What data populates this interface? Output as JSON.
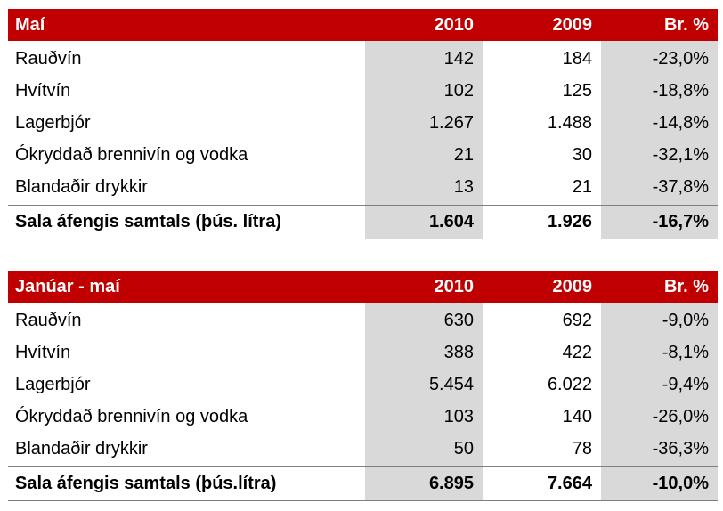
{
  "tables": [
    {
      "header": [
        "Maí",
        "2010",
        "2009",
        "Br. %"
      ],
      "rows": [
        [
          "Rauðvín",
          "142",
          "184",
          "-23,0%"
        ],
        [
          "Hvítvín",
          "102",
          "125",
          "-18,8%"
        ],
        [
          "Lagerbjór",
          "1.267",
          "1.488",
          "-14,8%"
        ],
        [
          "Ókryddað brennivín og vodka",
          "21",
          "30",
          "-32,1%"
        ],
        [
          "Blandaðir drykkir",
          "13",
          "21",
          "-37,8%"
        ]
      ],
      "total": [
        "Sala áfengis samtals (þús. lítra)",
        "1.604",
        "1.926",
        "-16,7%"
      ]
    },
    {
      "header": [
        "Janúar - maí",
        "2010",
        "2009",
        "Br. %"
      ],
      "rows": [
        [
          "Rauðvín",
          "630",
          "692",
          "-9,0%"
        ],
        [
          "Hvítvín",
          "388",
          "422",
          "-8,1%"
        ],
        [
          "Lagerbjór",
          "5.454",
          "6.022",
          "-9,4%"
        ],
        [
          "Ókryddað brennivín og vodka",
          "103",
          "140",
          "-26,0%"
        ],
        [
          "Blandaðir drykkir",
          "50",
          "78",
          "-36,3%"
        ]
      ],
      "total": [
        "Sala áfengis samtals (þús.lítra)",
        "6.895",
        "7.664",
        "-10,0%"
      ]
    }
  ]
}
